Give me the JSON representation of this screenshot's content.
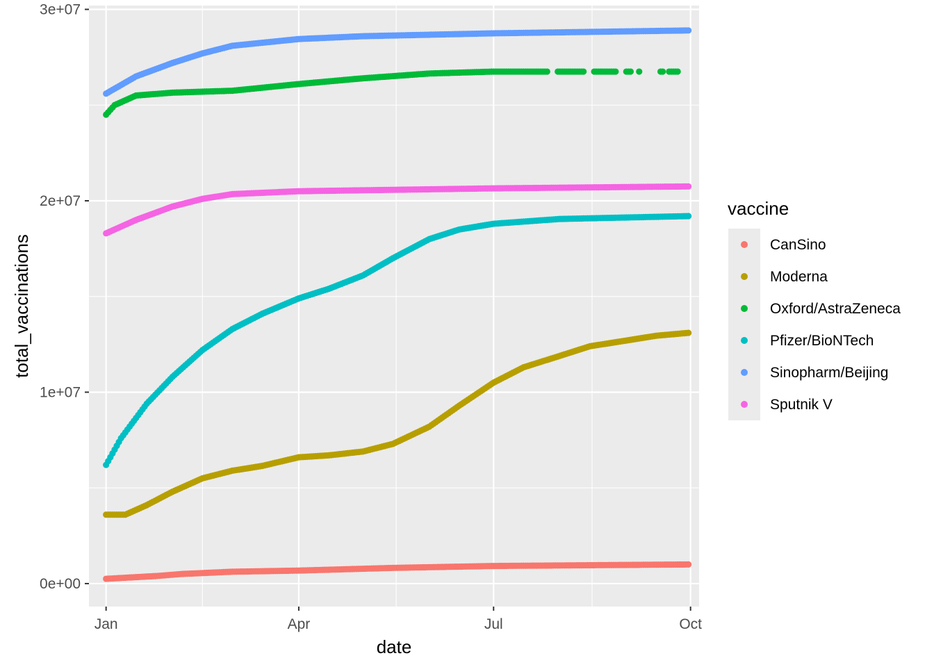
{
  "chart_data": {
    "type": "scatter",
    "xlabel": "date",
    "ylabel": "total_vaccinations",
    "x_ticks": [
      "Jan",
      "Apr",
      "Jul",
      "Oct"
    ],
    "x_tick_dates": [
      "2021-01-01",
      "2021-04-01",
      "2021-07-01",
      "2021-10-01"
    ],
    "xlim": [
      "2020-12-24",
      "2021-10-05"
    ],
    "y_ticks": [
      "0e+00",
      "1e+07",
      "2e+07",
      "3e+07"
    ],
    "y_tick_values": [
      0,
      10000000,
      20000000,
      30000000
    ],
    "ylim": [
      -1200000,
      30200000
    ],
    "grid": true,
    "legend": {
      "title": "vaccine",
      "position": "right"
    },
    "series": [
      {
        "name": "CanSino",
        "color": "#F8766D",
        "points": [
          [
            "2021-01-01",
            250000
          ],
          [
            "2021-01-25",
            400000
          ],
          [
            "2021-02-05",
            500000
          ],
          [
            "2021-03-01",
            620000
          ],
          [
            "2021-04-01",
            680000
          ],
          [
            "2021-05-15",
            820000
          ],
          [
            "2021-07-01",
            920000
          ],
          [
            "2021-08-15",
            960000
          ],
          [
            "2021-09-30",
            1000000
          ]
        ]
      },
      {
        "name": "Moderna",
        "color": "#B79F00",
        "points": [
          [
            "2021-01-01",
            3600000
          ],
          [
            "2021-01-10",
            3600000
          ],
          [
            "2021-01-20",
            4100000
          ],
          [
            "2021-02-01",
            4800000
          ],
          [
            "2021-02-15",
            5500000
          ],
          [
            "2021-03-01",
            5900000
          ],
          [
            "2021-03-15",
            6150000
          ],
          [
            "2021-04-01",
            6600000
          ],
          [
            "2021-04-15",
            6700000
          ],
          [
            "2021-05-01",
            6900000
          ],
          [
            "2021-05-15",
            7300000
          ],
          [
            "2021-06-01",
            8200000
          ],
          [
            "2021-06-15",
            9300000
          ],
          [
            "2021-07-01",
            10500000
          ],
          [
            "2021-07-15",
            11300000
          ],
          [
            "2021-08-01",
            11900000
          ],
          [
            "2021-08-15",
            12400000
          ],
          [
            "2021-09-01",
            12700000
          ],
          [
            "2021-09-15",
            12950000
          ],
          [
            "2021-09-30",
            13100000
          ]
        ]
      },
      {
        "name": "Oxford/AstraZeneca",
        "color": "#00BA38",
        "points": [
          [
            "2021-01-01",
            24500000
          ],
          [
            "2021-01-05",
            25000000
          ],
          [
            "2021-01-15",
            25500000
          ],
          [
            "2021-02-01",
            25650000
          ],
          [
            "2021-03-01",
            25750000
          ],
          [
            "2021-04-01",
            26100000
          ],
          [
            "2021-05-01",
            26400000
          ],
          [
            "2021-06-01",
            26650000
          ],
          [
            "2021-07-01",
            26750000
          ],
          [
            "2021-08-01",
            26750000
          ],
          [
            "2021-09-25",
            26750000
          ]
        ]
      },
      {
        "name": "Pfizer/BioNTech",
        "color": "#00BFC4",
        "points": [
          [
            "2021-01-01",
            6200000
          ],
          [
            "2021-01-08",
            7600000
          ],
          [
            "2021-01-20",
            9400000
          ],
          [
            "2021-02-01",
            10800000
          ],
          [
            "2021-02-15",
            12200000
          ],
          [
            "2021-03-01",
            13300000
          ],
          [
            "2021-03-15",
            14100000
          ],
          [
            "2021-04-01",
            14900000
          ],
          [
            "2021-04-15",
            15400000
          ],
          [
            "2021-05-01",
            16100000
          ],
          [
            "2021-05-15",
            17000000
          ],
          [
            "2021-06-01",
            18000000
          ],
          [
            "2021-06-15",
            18500000
          ],
          [
            "2021-07-01",
            18800000
          ],
          [
            "2021-08-01",
            19050000
          ],
          [
            "2021-09-30",
            19200000
          ]
        ]
      },
      {
        "name": "Sinopharm/Beijing",
        "color": "#619CFF",
        "points": [
          [
            "2021-01-01",
            25600000
          ],
          [
            "2021-01-15",
            26500000
          ],
          [
            "2021-02-01",
            27200000
          ],
          [
            "2021-02-15",
            27700000
          ],
          [
            "2021-03-01",
            28100000
          ],
          [
            "2021-04-01",
            28450000
          ],
          [
            "2021-05-01",
            28600000
          ],
          [
            "2021-07-01",
            28750000
          ],
          [
            "2021-09-30",
            28900000
          ]
        ]
      },
      {
        "name": "Sputnik V",
        "color": "#F564E3",
        "points": [
          [
            "2021-01-01",
            18300000
          ],
          [
            "2021-01-15",
            19000000
          ],
          [
            "2021-02-01",
            19700000
          ],
          [
            "2021-02-15",
            20100000
          ],
          [
            "2021-03-01",
            20350000
          ],
          [
            "2021-04-01",
            20500000
          ],
          [
            "2021-07-01",
            20650000
          ],
          [
            "2021-09-30",
            20750000
          ]
        ]
      }
    ]
  }
}
